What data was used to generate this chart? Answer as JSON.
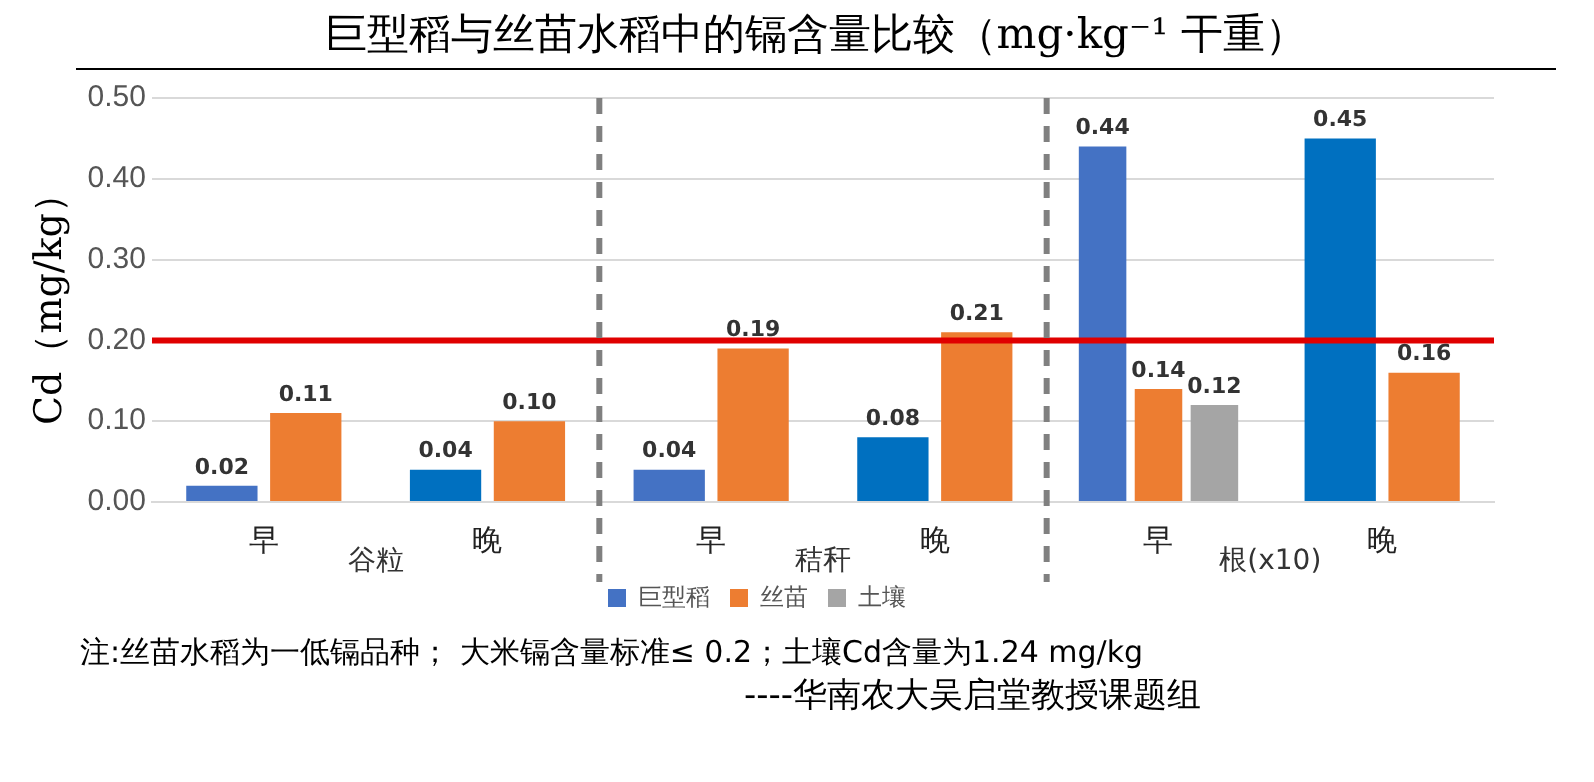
{
  "chart_data": {
    "type": "bar",
    "title": "巨型稻与丝苗水稻中的镉含量比较（mg·kg⁻¹ 干重）",
    "ylabel": "Cd（mg/kg）",
    "categories": [
      "早",
      "晚",
      "早",
      "晚",
      "早",
      "晚"
    ],
    "series": [
      {
        "name": "巨型稻",
        "color": "#4472c4",
        "colors": [
          "#4472c4",
          "#0070c0",
          "#4472c4",
          "#0070c0",
          "#4472c4",
          "#0070c0"
        ],
        "values": [
          0.02,
          0.04,
          0.04,
          0.08,
          0.44,
          0.45
        ],
        "value_labels": [
          "0.02",
          "0.04",
          "0.04",
          "0.08",
          "0.44",
          "0.45"
        ]
      },
      {
        "name": "丝苗",
        "color": "#ed7d31",
        "values": [
          0.11,
          0.1,
          0.19,
          0.21,
          0.14,
          0.16
        ],
        "value_labels": [
          "0.11",
          "0.10",
          "0.19",
          "0.21",
          "0.14",
          "0.16"
        ]
      },
      {
        "name": "土壤",
        "color": "#a5a5a5",
        "values": [
          null,
          null,
          null,
          null,
          0.12,
          null
        ],
        "value_labels": [
          null,
          null,
          null,
          null,
          "0.12",
          null
        ]
      }
    ],
    "ylim": [
      0,
      0.5
    ],
    "yticks": [
      {
        "value": 0,
        "label": "0.00"
      },
      {
        "value": 0.1,
        "label": "0.10"
      },
      {
        "value": 0.2,
        "label": "0.20"
      },
      {
        "value": 0.3,
        "label": "0.30"
      },
      {
        "value": 0.4,
        "label": "0.40"
      },
      {
        "value": 0.5,
        "label": "0.50"
      }
    ],
    "grid": "y",
    "legend": "bottom",
    "ref_lines": [
      {
        "axis": "y",
        "value": 0.2,
        "color": "#e00000",
        "line_style": "solid"
      }
    ],
    "annotations": [
      "谷粒",
      "秸秆",
      "根(x10)",
      "注:丝苗水稻为一低镉品种； 大米镉含量标准≤ 0.2；土壤Cd含量为1.24 mg/kg",
      "----华南农大吴启堂教授课题组"
    ]
  }
}
